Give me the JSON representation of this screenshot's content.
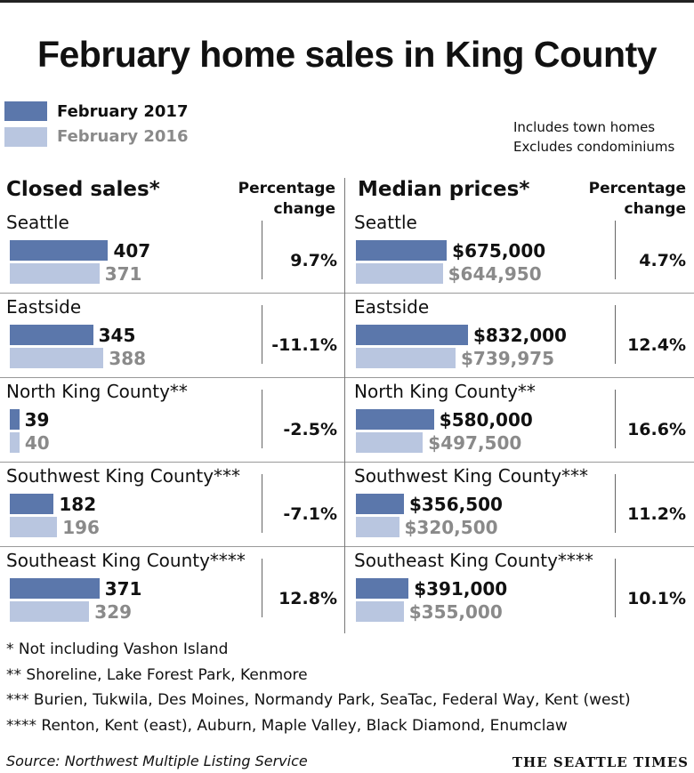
{
  "title": "February home sales in King County",
  "legend": [
    {
      "label": "February 2017",
      "color": "#5b77ab"
    },
    {
      "label": "February 2016",
      "color": "#b9c6e0"
    }
  ],
  "notes": [
    "Includes town homes",
    "Excludes condominiums"
  ],
  "chart_data": [
    {
      "type": "bar",
      "title": "Closed sales*",
      "pct_header": [
        "Percentage",
        "change"
      ],
      "categories": [
        "Seattle",
        "Eastside",
        "North King County**",
        "Southwest King County***",
        "Southeast King County****"
      ],
      "series": [
        {
          "name": "February 2017",
          "values": [
            407,
            345,
            39,
            182,
            371
          ],
          "labels": [
            "407",
            "345",
            "39",
            "182",
            "371"
          ]
        },
        {
          "name": "February 2016",
          "values": [
            371,
            388,
            40,
            196,
            329
          ],
          "labels": [
            "371",
            "388",
            "40",
            "196",
            "329"
          ]
        }
      ],
      "pct_change": [
        "9.7%",
        "-11.1%",
        "-2.5%",
        "-7.1%",
        "12.8%"
      ],
      "xlim": [
        0,
        420
      ]
    },
    {
      "type": "bar",
      "title": "Median prices*",
      "pct_header": [
        "Percentage",
        "change"
      ],
      "categories": [
        "Seattle",
        "Eastside",
        "North King County**",
        "Southwest King County***",
        "Southeast King County****"
      ],
      "series": [
        {
          "name": "February 2017",
          "values": [
            675000,
            832000,
            580000,
            356500,
            391000
          ],
          "labels": [
            "$675,000",
            "$832,000",
            "$580,000",
            "$356,500",
            "$391,000"
          ]
        },
        {
          "name": "February 2016",
          "values": [
            644950,
            739975,
            497500,
            320500,
            355000
          ],
          "labels": [
            "$644,950",
            "$739,975",
            "$497,500",
            "$320,500",
            "$355,000"
          ]
        }
      ],
      "pct_change": [
        "4.7%",
        "12.4%",
        "16.6%",
        "11.2%",
        "10.1%"
      ],
      "xlim": [
        0,
        872000
      ]
    }
  ],
  "footnotes": [
    "* Not including Vashon Island",
    "**  Shoreline, Lake Forest Park, Kenmore",
    "*** Burien, Tukwila, Des Moines, Normandy Park, SeaTac, Federal Way, Kent (west)",
    "**** Renton, Kent (east), Auburn, Maple Valley, Black Diamond, Enumclaw"
  ],
  "source": "Source: Northwest Multiple Listing Service",
  "brand": "THE SEATTLE TIMES"
}
